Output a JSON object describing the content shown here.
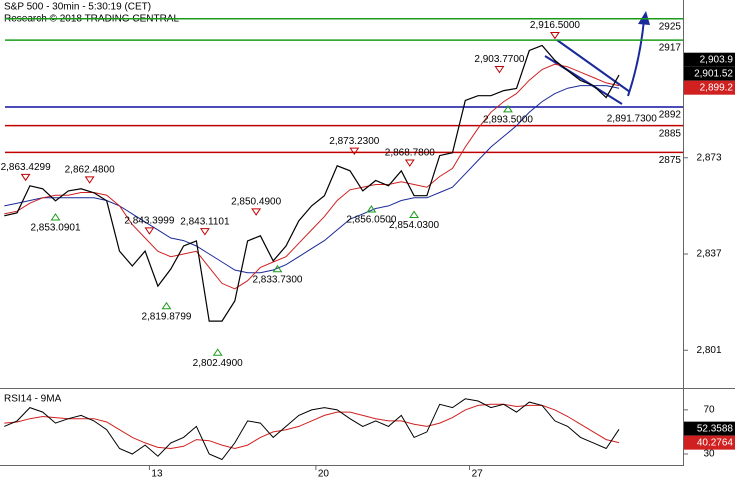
{
  "chart_data": [
    {
      "type": "line",
      "title": "S&P 500 - 30min - 5:30:19 (CET)",
      "subtitle": "Research © 2018 TRADING CENTRAL",
      "xlim": [
        0,
        160
      ],
      "ylim": [
        2788,
        2932
      ],
      "yticks": [
        {
          "value": 2873,
          "label": "2,873"
        },
        {
          "value": 2837,
          "label": "2,837"
        },
        {
          "value": 2801,
          "label": "2,801"
        }
      ],
      "x": [
        1,
        4,
        7,
        10,
        13,
        16,
        19,
        22,
        25,
        28,
        31,
        34,
        37,
        40,
        43,
        46,
        49,
        52,
        55,
        58,
        61,
        64,
        67,
        70,
        73,
        76,
        79,
        82,
        85,
        88,
        91,
        94,
        97,
        100,
        103,
        106,
        109,
        112,
        115,
        118,
        121,
        124,
        127,
        130,
        133,
        136,
        139,
        142,
        145
      ],
      "series": [
        {
          "color": "#000000",
          "width": 1.2,
          "values": [
            2851.3,
            2852.4,
            2862.5,
            2861.4,
            2856.9,
            2860.6,
            2861.4,
            2859.9,
            2856.9,
            2838.1,
            2832.5,
            2838.1,
            2825.0,
            2831.4,
            2840.0,
            2841.9,
            2811.9,
            2811.9,
            2819.4,
            2841.9,
            2843.8,
            2834.4,
            2840.0,
            2849.4,
            2855.0,
            2858.8,
            2870.0,
            2868.1,
            2860.6,
            2864.5,
            2862.5,
            2868.1,
            2858.8,
            2858.8,
            2873.8,
            2874.9,
            2894.4,
            2896.2,
            2896.2,
            2898.1,
            2898.9,
            2913.1,
            2915.0,
            2909.4,
            2905.6,
            2901.9,
            2900.0,
            2895.5,
            2903.9
          ]
        },
        {
          "color": "#d02020",
          "width": 1,
          "values": [
            2852,
            2853,
            2856,
            2858,
            2859,
            2859,
            2860,
            2860,
            2859,
            2855,
            2848,
            2843,
            2838,
            2836,
            2837,
            2838,
            2832,
            2826,
            2824,
            2827,
            2832,
            2834,
            2836,
            2841,
            2846,
            2851,
            2857,
            2861,
            2862,
            2863,
            2863,
            2864,
            2863,
            2862,
            2866,
            2869,
            2877,
            2884,
            2890,
            2894,
            2897,
            2902,
            2906,
            2908,
            2907,
            2905,
            2903,
            2901,
            2900
          ]
        },
        {
          "color": "#1a2a9a",
          "width": 1,
          "values": [
            2855,
            2856,
            2857,
            2858,
            2858,
            2858,
            2858,
            2858,
            2857,
            2855,
            2852,
            2849,
            2846,
            2843,
            2842,
            2840,
            2837,
            2834,
            2831,
            2830,
            2830,
            2831,
            2833,
            2836,
            2839,
            2842,
            2846,
            2850,
            2852,
            2854,
            2855,
            2857,
            2858,
            2858,
            2860,
            2862,
            2867,
            2872,
            2877,
            2881,
            2885,
            2890,
            2894,
            2897,
            2899,
            2900,
            2900,
            2900,
            2899
          ]
        }
      ],
      "levels": [
        {
          "value": 2925,
          "color": "#1a9c1a"
        },
        {
          "value": 2917,
          "color": "#1a9c1a"
        },
        {
          "value": 2892,
          "color": "#1010a0"
        },
        {
          "value": 2885,
          "color": "#c00000"
        },
        {
          "value": 2875,
          "color": "#c00000"
        }
      ],
      "annotations": [
        {
          "x": 6,
          "value": 2863.4299,
          "label": "2,863.4299",
          "kind": "high"
        },
        {
          "x": 21,
          "value": 2862.48,
          "label": "2,862.4800",
          "kind": "high"
        },
        {
          "x": 13,
          "value": 2853.0901,
          "label": "2,853.0901",
          "kind": "low"
        },
        {
          "x": 35,
          "value": 2843.3999,
          "label": "2,843.3999",
          "kind": "high"
        },
        {
          "x": 48,
          "value": 2843.1101,
          "label": "2,843.1101",
          "kind": "high"
        },
        {
          "x": 60,
          "value": 2850.49,
          "label": "2,850.4900",
          "kind": "high"
        },
        {
          "x": 39,
          "value": 2819.8799,
          "label": "2,819.8799",
          "kind": "low"
        },
        {
          "x": 51,
          "value": 2802.49,
          "label": "2,802.4900",
          "kind": "low"
        },
        {
          "x": 65,
          "value": 2833.73,
          "label": "2,833.7300",
          "kind": "low"
        },
        {
          "x": 83,
          "value": 2873.23,
          "label": "2,873.2300",
          "kind": "high"
        },
        {
          "x": 96,
          "value": 2868.78,
          "label": "2,868.7800",
          "kind": "high"
        },
        {
          "x": 87,
          "value": 2856.05,
          "label": "2,856.0500",
          "kind": "low"
        },
        {
          "x": 97,
          "value": 2854.03,
          "label": "2,854.0300",
          "kind": "low"
        },
        {
          "x": 117,
          "value": 2903.77,
          "label": "2,903.7700",
          "kind": "high"
        },
        {
          "x": 130,
          "value": 2916.5,
          "label": "2,916.5000",
          "kind": "high"
        },
        {
          "x": 119,
          "value": 2893.5,
          "label": "2,893.5000",
          "kind": "low"
        },
        {
          "x": 148,
          "value": 2891.73,
          "label": "2,891.7300"
        }
      ],
      "price_labels": [
        {
          "value": 2903.9,
          "label": "2,903.9",
          "color": "#000000"
        },
        {
          "value": 2901.52,
          "label": "2,901.52",
          "color": "#000000"
        },
        {
          "value": 2899.2,
          "label": "2,899.2",
          "color": "#d02020"
        }
      ]
    },
    {
      "type": "line",
      "title": "RSI14 - 9MA",
      "xlim": [
        0,
        160
      ],
      "ylim": [
        20,
        88
      ],
      "yticks": [
        70,
        30
      ],
      "xticks": [
        {
          "value": 35,
          "label": "13"
        },
        {
          "value": 74,
          "label": "20"
        },
        {
          "value": 110,
          "label": "27"
        }
      ],
      "x": [
        1,
        4,
        7,
        10,
        13,
        16,
        19,
        22,
        25,
        28,
        31,
        34,
        37,
        40,
        43,
        46,
        49,
        52,
        55,
        58,
        61,
        64,
        67,
        70,
        73,
        76,
        79,
        82,
        85,
        88,
        91,
        94,
        97,
        100,
        103,
        106,
        109,
        112,
        115,
        118,
        121,
        124,
        127,
        130,
        133,
        136,
        139,
        142,
        145
      ],
      "series": [
        {
          "color": "#000000",
          "width": 1,
          "values": [
            55,
            60,
            72,
            68,
            58,
            62,
            65,
            60,
            52,
            35,
            30,
            38,
            28,
            40,
            45,
            55,
            30,
            25,
            40,
            60,
            58,
            45,
            55,
            65,
            70,
            72,
            70,
            62,
            55,
            60,
            55,
            65,
            45,
            50,
            75,
            72,
            80,
            78,
            72,
            75,
            68,
            77,
            74,
            60,
            55,
            45,
            40,
            35,
            52.3588
          ]
        },
        {
          "color": "#d02020",
          "width": 1,
          "values": [
            58,
            59,
            62,
            64,
            63,
            62,
            62,
            62,
            59,
            52,
            45,
            40,
            36,
            35,
            37,
            43,
            42,
            38,
            35,
            38,
            45,
            50,
            52,
            55,
            60,
            65,
            68,
            68,
            65,
            62,
            60,
            60,
            57,
            55,
            58,
            63,
            70,
            74,
            75,
            75,
            73,
            74,
            74,
            70,
            64,
            57,
            50,
            43,
            40.2764
          ]
        }
      ],
      "price_labels": [
        {
          "value": 52.3588,
          "color": "#000000"
        },
        {
          "value": 40.2764,
          "color": "#d02020"
        }
      ]
    }
  ]
}
